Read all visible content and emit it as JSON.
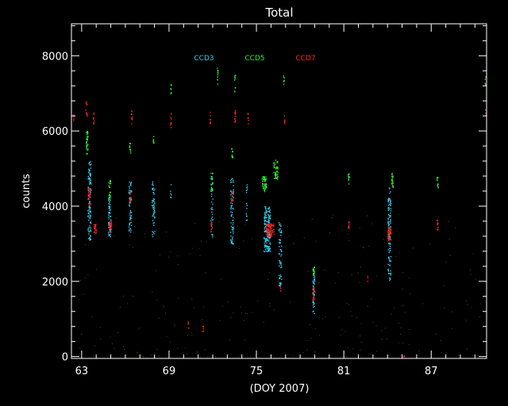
{
  "chart_data": {
    "type": "scatter",
    "title": "Total",
    "xlabel": "(DOY 2007)",
    "ylabel": "counts",
    "xlim": [
      62.3,
      90.8
    ],
    "ylim": [
      -50,
      8850
    ],
    "xticks": [
      63,
      69,
      75,
      81,
      87
    ],
    "yticks": [
      0,
      2000,
      4000,
      6000,
      8000
    ],
    "grid": false,
    "legend_position": "top",
    "colors": {
      "background": "#000000",
      "axes": "#ffffff",
      "ccd3": "#33ccee",
      "ccd5": "#33ee33",
      "ccd7": "#ff2222",
      "faint": "#33aa33"
    },
    "series": [
      {
        "name": "CCD3",
        "color": "#33ccee",
        "clusters": [
          {
            "x": 63.5,
            "xw": 0.22,
            "y0": 3100,
            "y1": 5200,
            "n": 110
          },
          {
            "x": 64.9,
            "xw": 0.18,
            "y0": 3200,
            "y1": 4300,
            "n": 60
          },
          {
            "x": 66.3,
            "xw": 0.18,
            "y0": 3300,
            "y1": 4700,
            "n": 60
          },
          {
            "x": 67.9,
            "xw": 0.2,
            "y0": 3200,
            "y1": 4700,
            "n": 55
          },
          {
            "x": 69.1,
            "xw": 0.05,
            "y0": 4200,
            "y1": 4600,
            "n": 6
          },
          {
            "x": 71.9,
            "xw": 0.15,
            "y0": 3100,
            "y1": 5000,
            "n": 35
          },
          {
            "x": 73.3,
            "xw": 0.2,
            "y0": 3000,
            "y1": 4800,
            "n": 70
          },
          {
            "x": 74.3,
            "xw": 0.08,
            "y0": 3600,
            "y1": 4600,
            "n": 15
          },
          {
            "x": 75.7,
            "xw": 0.45,
            "y0": 2800,
            "y1": 4000,
            "n": 170
          },
          {
            "x": 76.6,
            "xw": 0.2,
            "y0": 1900,
            "y1": 3600,
            "n": 60
          },
          {
            "x": 78.9,
            "xw": 0.14,
            "y0": 1100,
            "y1": 2300,
            "n": 45
          },
          {
            "x": 84.1,
            "xw": 0.2,
            "y0": 2000,
            "y1": 4500,
            "n": 110
          }
        ]
      },
      {
        "name": "CCD5",
        "color": "#33ee33",
        "clusters": [
          {
            "x": 63.35,
            "xw": 0.12,
            "y0": 5400,
            "y1": 6000,
            "n": 40
          },
          {
            "x": 64.9,
            "xw": 0.14,
            "y0": 4200,
            "y1": 4700,
            "n": 25
          },
          {
            "x": 66.3,
            "xw": 0.08,
            "y0": 5300,
            "y1": 5700,
            "n": 10
          },
          {
            "x": 67.9,
            "xw": 0.06,
            "y0": 5600,
            "y1": 5900,
            "n": 8
          },
          {
            "x": 69.1,
            "xw": 0.05,
            "y0": 7000,
            "y1": 7300,
            "n": 8
          },
          {
            "x": 71.9,
            "xw": 0.12,
            "y0": 4400,
            "y1": 4900,
            "n": 18
          },
          {
            "x": 72.3,
            "xw": 0.05,
            "y0": 7200,
            "y1": 7700,
            "n": 10
          },
          {
            "x": 73.3,
            "xw": 0.1,
            "y0": 5300,
            "y1": 5600,
            "n": 12
          },
          {
            "x": 73.5,
            "xw": 0.06,
            "y0": 7000,
            "y1": 7500,
            "n": 10
          },
          {
            "x": 75.5,
            "xw": 0.3,
            "y0": 4400,
            "y1": 4800,
            "n": 55
          },
          {
            "x": 76.3,
            "xw": 0.3,
            "y0": 4700,
            "y1": 5250,
            "n": 45
          },
          {
            "x": 76.85,
            "xw": 0.05,
            "y0": 7200,
            "y1": 7500,
            "n": 8
          },
          {
            "x": 78.9,
            "xw": 0.12,
            "y0": 2150,
            "y1": 2400,
            "n": 20
          },
          {
            "x": 81.3,
            "xw": 0.08,
            "y0": 4600,
            "y1": 4900,
            "n": 12
          },
          {
            "x": 84.3,
            "xw": 0.12,
            "y0": 4500,
            "y1": 4900,
            "n": 25
          },
          {
            "x": 87.4,
            "xw": 0.08,
            "y0": 4500,
            "y1": 4800,
            "n": 12
          },
          {
            "x": 90.7,
            "xw": 0.05,
            "y0": 7200,
            "y1": 7500,
            "n": 6
          }
        ]
      },
      {
        "name": "CCD7",
        "color": "#ff2222",
        "clusters": [
          {
            "x": 62.4,
            "xw": 0.05,
            "y0": 6200,
            "y1": 6450,
            "n": 5
          },
          {
            "x": 63.3,
            "xw": 0.1,
            "y0": 6400,
            "y1": 6800,
            "n": 12
          },
          {
            "x": 63.5,
            "xw": 0.18,
            "y0": 4000,
            "y1": 4500,
            "n": 30
          },
          {
            "x": 63.9,
            "xw": 0.15,
            "y0": 3300,
            "y1": 3600,
            "n": 25
          },
          {
            "x": 63.8,
            "xw": 0.05,
            "y0": 6200,
            "y1": 6500,
            "n": 8
          },
          {
            "x": 64.95,
            "xw": 0.18,
            "y0": 3300,
            "y1": 3600,
            "n": 30
          },
          {
            "x": 66.3,
            "xw": 0.1,
            "y0": 4100,
            "y1": 4400,
            "n": 12
          },
          {
            "x": 66.4,
            "xw": 0.07,
            "y0": 6200,
            "y1": 6550,
            "n": 12
          },
          {
            "x": 69.1,
            "xw": 0.05,
            "y0": 6100,
            "y1": 6500,
            "n": 10
          },
          {
            "x": 70.3,
            "xw": 0.05,
            "y0": 750,
            "y1": 950,
            "n": 6
          },
          {
            "x": 71.3,
            "xw": 0.05,
            "y0": 650,
            "y1": 850,
            "n": 6
          },
          {
            "x": 71.9,
            "xw": 0.08,
            "y0": 3300,
            "y1": 3600,
            "n": 12
          },
          {
            "x": 71.8,
            "xw": 0.05,
            "y0": 6200,
            "y1": 6550,
            "n": 8
          },
          {
            "x": 73.3,
            "xw": 0.12,
            "y0": 4100,
            "y1": 4400,
            "n": 15
          },
          {
            "x": 73.5,
            "xw": 0.07,
            "y0": 6200,
            "y1": 6600,
            "n": 12
          },
          {
            "x": 74.4,
            "xw": 0.05,
            "y0": 6200,
            "y1": 6500,
            "n": 8
          },
          {
            "x": 75.9,
            "xw": 0.55,
            "y0": 3200,
            "y1": 3550,
            "n": 90
          },
          {
            "x": 76.6,
            "xw": 0.06,
            "y0": 1700,
            "y1": 1900,
            "n": 6
          },
          {
            "x": 76.9,
            "xw": 0.05,
            "y0": 6200,
            "y1": 6500,
            "n": 8
          },
          {
            "x": 78.9,
            "xw": 0.1,
            "y0": 1500,
            "y1": 1850,
            "n": 18
          },
          {
            "x": 81.3,
            "xw": 0.08,
            "y0": 3400,
            "y1": 3650,
            "n": 10
          },
          {
            "x": 82.6,
            "xw": 0.04,
            "y0": 2000,
            "y1": 2150,
            "n": 3
          },
          {
            "x": 84.1,
            "xw": 0.22,
            "y0": 3100,
            "y1": 3450,
            "n": 45
          },
          {
            "x": 85.1,
            "xw": 0.05,
            "y0": 0,
            "y1": 60,
            "n": 5
          },
          {
            "x": 87.4,
            "xw": 0.08,
            "y0": 3350,
            "y1": 3650,
            "n": 10
          },
          {
            "x": 90.7,
            "xw": 0.05,
            "y0": 6400,
            "y1": 6600,
            "n": 4
          }
        ]
      }
    ],
    "faint_background_points": {
      "color": "#33aa33",
      "n": 240,
      "x_range": [
        62.5,
        90.5
      ],
      "y_range": [
        0,
        3800
      ]
    }
  }
}
